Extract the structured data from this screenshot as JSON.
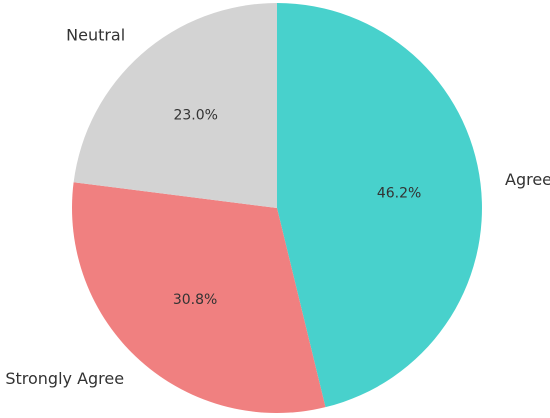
{
  "chart_data": {
    "type": "pie",
    "categories": [
      "Agree",
      "Strongly Agree",
      "Neutral"
    ],
    "values": [
      46.2,
      30.8,
      23.0
    ],
    "labels": [
      "46.2%",
      "30.8%",
      "23.0%"
    ],
    "colors": [
      "#48D1CC",
      "#F08080",
      "#D3D3D3"
    ],
    "start_angle_deg": 90,
    "direction": "clockwise"
  }
}
